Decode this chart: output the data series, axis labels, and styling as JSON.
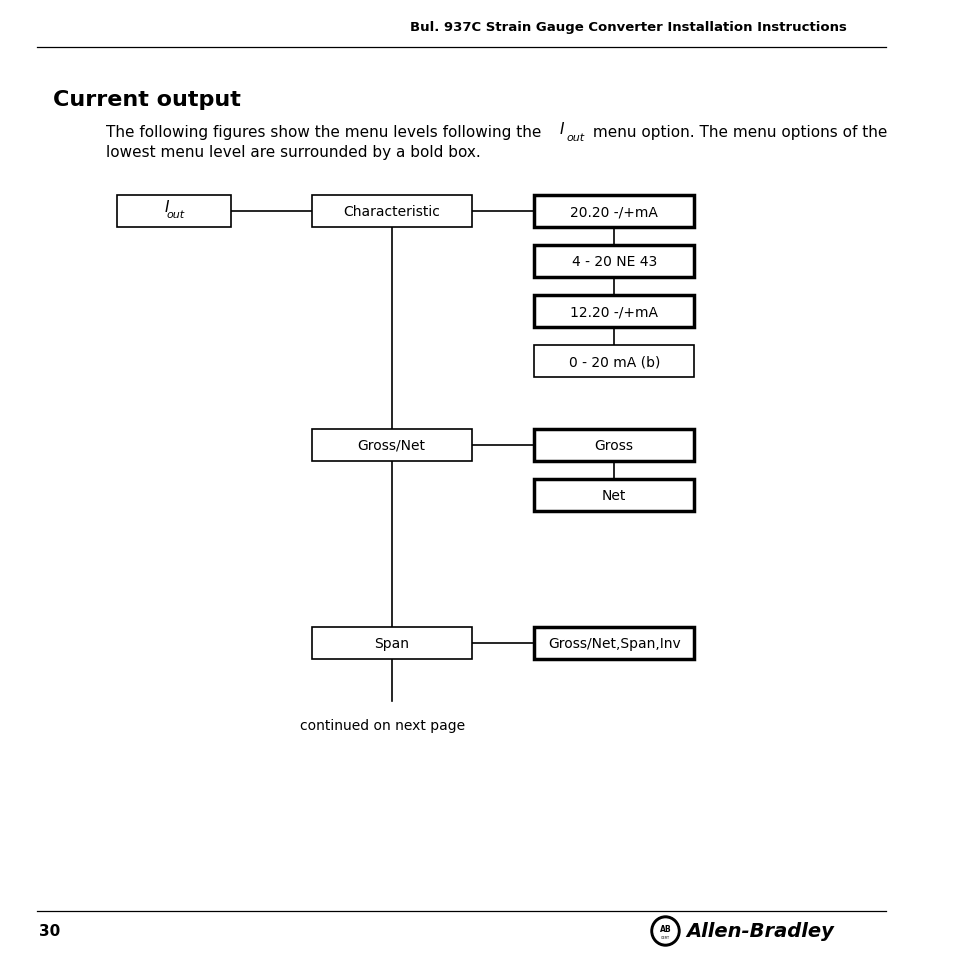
{
  "page_header": "Bul. 937C Strain Gauge Converter Installation Instructions",
  "page_number": "30",
  "section_title": "Current output",
  "body_line1a": "The following figures show the menu levels following the ",
  "body_line1b": " menu option. The menu options of the",
  "body_line2": "lowest menu level are surrounded by a bold box.",
  "char_children": [
    "20.20 -/+mA",
    "4 - 20 NE 43",
    "12.20 -/+mA",
    "0 - 20 mA (b)"
  ],
  "char_bold": [
    true,
    true,
    true,
    false
  ],
  "grossnet_children": [
    "Gross",
    "Net"
  ],
  "grossnet_bold": [
    true,
    true
  ],
  "span_children": [
    "Gross/Net,Span,Inv"
  ],
  "span_bold": [
    true
  ],
  "continued_text": "continued on next page",
  "bg_color": "#ffffff",
  "text_color": "#000000"
}
